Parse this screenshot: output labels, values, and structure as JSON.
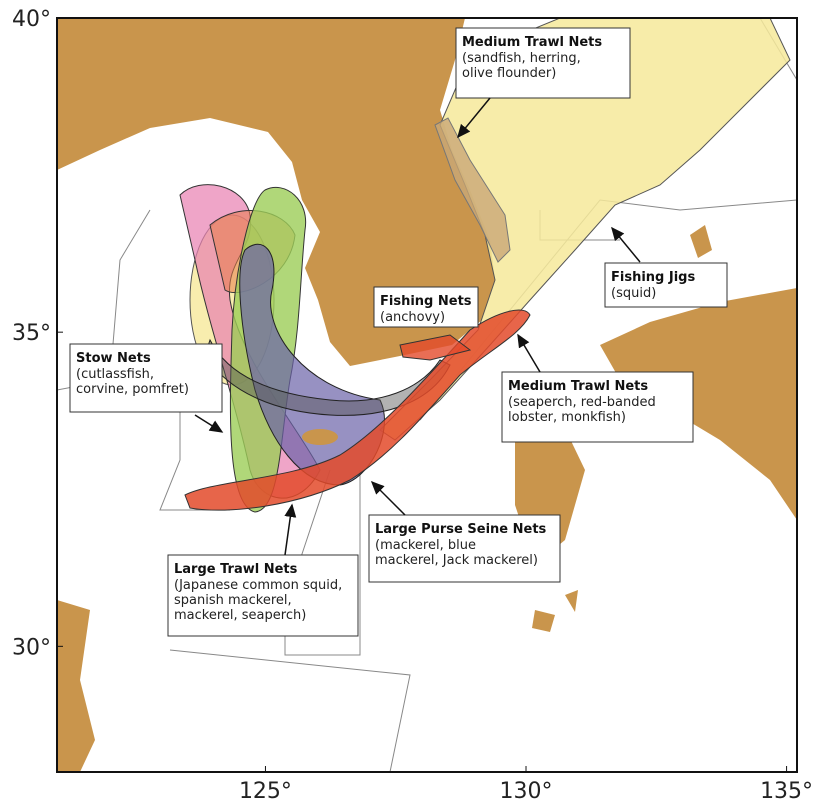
{
  "map": {
    "xlim": [
      121,
      135.2
    ],
    "ylim": [
      28,
      40
    ],
    "xticks": [
      {
        "value": 125,
        "label": "125°"
      },
      {
        "value": 130,
        "label": "130°"
      },
      {
        "value": 135,
        "label": "135°"
      }
    ],
    "yticks": [
      {
        "value": 40,
        "label": "40°"
      },
      {
        "value": 35,
        "label": "35°"
      },
      {
        "value": 30,
        "label": "30°"
      }
    ],
    "annotations": [
      {
        "title": "Medium Trawl Nets",
        "lines": [
          "(sandfish, herring,",
          "olive flounder)"
        ]
      },
      {
        "title": "Fishing Jigs",
        "lines": [
          "(squid)"
        ]
      },
      {
        "title": "Fishing Nets",
        "lines": [
          "(anchovy)"
        ]
      },
      {
        "title": "Medium Trawl Nets",
        "lines": [
          "(seaperch, red-banded",
          "lobster, monkfish)"
        ]
      },
      {
        "title": "Stow Nets",
        "lines": [
          "(cutlassfish,",
          "corvine, pomfret)"
        ]
      },
      {
        "title": "Large Purse Seine Nets",
        "lines": [
          "(mackerel, blue",
          "mackerel, Jack mackerel)"
        ]
      },
      {
        "title": "Large Trawl Nets",
        "lines": [
          "(Japanese common squid,",
          "spanish mackerel,",
          "mackerel, seaperch)"
        ]
      }
    ]
  }
}
